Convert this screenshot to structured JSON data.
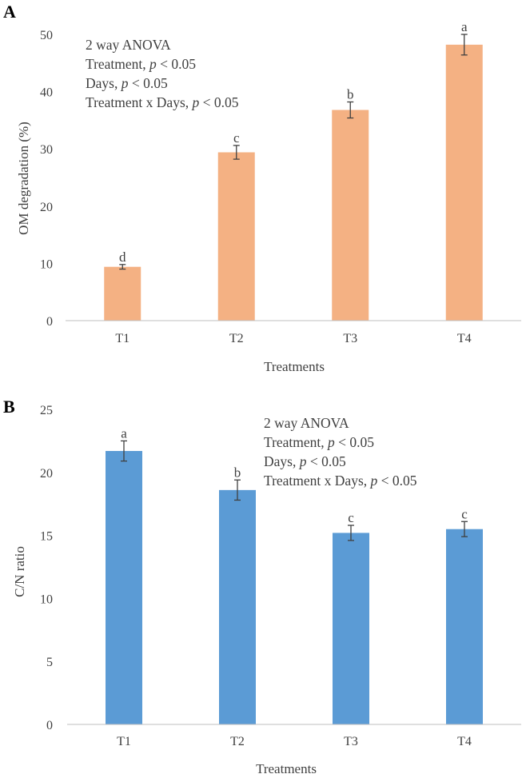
{
  "chart_data": [
    {
      "type": "bar",
      "panel": "A",
      "categories": [
        "T1",
        "T2",
        "T3",
        "T4"
      ],
      "values": [
        9.4,
        29.4,
        36.8,
        48.2
      ],
      "errors": [
        0.4,
        1.2,
        1.4,
        1.8
      ],
      "significance": [
        "d",
        "c",
        "b",
        "a"
      ],
      "color": "#f4b183",
      "xlabel": "Treatments",
      "ylabel": "OM degradation (%)",
      "ylim": [
        0,
        50
      ],
      "yticks": [
        0,
        10,
        20,
        30,
        40,
        50
      ],
      "grid": false,
      "anova": [
        {
          "text": "2 way ANOVA",
          "p": ""
        },
        {
          "text": "Treatment, ",
          "p": "p",
          "rest": " < 0.05"
        },
        {
          "text": "Days, ",
          "p": "p",
          "rest": " < 0.05"
        },
        {
          "text": "Treatment x Days, ",
          "p": "p",
          "rest": " < 0.05"
        }
      ]
    },
    {
      "type": "bar",
      "panel": "B",
      "categories": [
        "T1",
        "T2",
        "T3",
        "T4"
      ],
      "values": [
        21.7,
        18.6,
        15.2,
        15.5
      ],
      "errors": [
        0.8,
        0.8,
        0.6,
        0.6
      ],
      "significance": [
        "a",
        "b",
        "c",
        "c"
      ],
      "color": "#5b9bd5",
      "xlabel": "Treatments",
      "ylabel": "C/N ratio",
      "ylim": [
        0,
        25
      ],
      "yticks": [
        0,
        5,
        10,
        15,
        20,
        25
      ],
      "grid": false,
      "anova": [
        {
          "text": "2 way ANOVA",
          "p": ""
        },
        {
          "text": "Treatment, ",
          "p": "p",
          "rest": " < 0.05"
        },
        {
          "text": "Days, ",
          "p": "p",
          "rest": " < 0.05"
        },
        {
          "text": "Treatment x Days, ",
          "p": "p",
          "rest": " < 0.05"
        }
      ]
    }
  ]
}
